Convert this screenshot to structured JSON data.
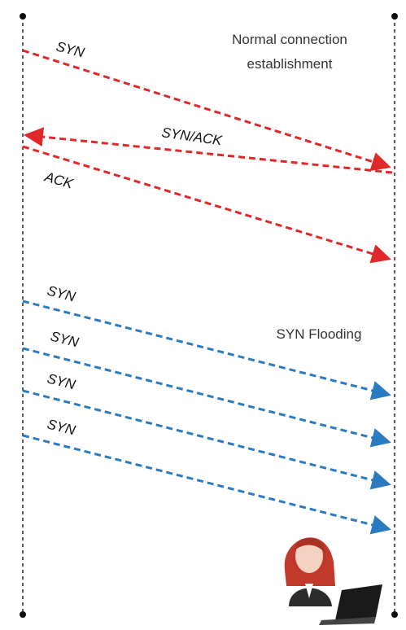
{
  "normal_title_lines": [
    "Normal connection",
    "establishment"
  ],
  "flood_title": "SYN Flooding",
  "handshake": [
    {
      "label": "SYN"
    },
    {
      "label": "SYN/ACK"
    },
    {
      "label": "ACK"
    }
  ],
  "flood": [
    {
      "label": "SYN"
    },
    {
      "label": "SYN"
    },
    {
      "label": "SYN"
    },
    {
      "label": "SYN"
    }
  ]
}
